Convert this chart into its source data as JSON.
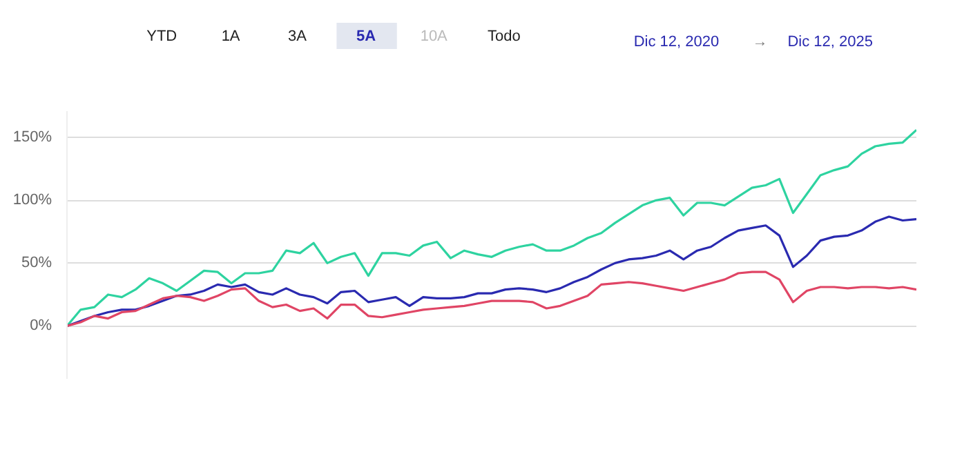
{
  "chart_data": {
    "type": "line",
    "annotations": [
      "YTD",
      "1A",
      "3A",
      "5A",
      "10A",
      "Todo",
      "Dic 12, 2020",
      "→",
      "Dic 12, 2025"
    ],
    "categories": [
      null,
      null,
      null,
      null,
      null,
      null,
      null,
      null,
      null,
      null,
      null,
      null,
      null,
      null,
      null,
      null,
      null,
      null,
      null,
      null,
      null,
      null,
      null,
      null,
      null,
      null,
      null,
      null,
      null,
      null,
      null,
      null,
      null,
      null,
      null,
      null,
      null,
      null,
      null,
      null,
      null,
      null,
      null,
      null,
      null,
      null,
      null,
      null,
      null,
      null,
      null,
      null,
      null,
      null,
      null,
      null,
      null,
      null,
      null,
      null,
      null,
      null,
      null
    ],
    "series": [
      {
        "color": "#2ed3a0",
        "values": [
          0,
          13,
          15,
          25,
          23,
          29,
          38,
          34,
          28,
          36,
          44,
          43,
          34,
          42,
          42,
          44,
          60,
          58,
          66,
          50,
          55,
          58,
          40,
          58,
          58,
          56,
          64,
          67,
          54,
          60,
          57,
          55,
          60,
          63,
          65,
          60,
          60,
          64,
          70,
          74,
          82,
          89,
          96,
          100,
          102,
          88,
          98,
          98,
          96,
          103,
          110,
          112,
          117,
          90,
          105,
          120,
          124,
          127,
          137,
          143,
          145,
          146,
          156
        ]
      },
      {
        "color": "#2a2ab0",
        "values": [
          0,
          4,
          8,
          11,
          13,
          13,
          16,
          20,
          24,
          25,
          28,
          33,
          31,
          33,
          27,
          25,
          30,
          25,
          23,
          18,
          27,
          28,
          19,
          21,
          23,
          16,
          23,
          22,
          22,
          23,
          26,
          26,
          29,
          30,
          29,
          27,
          30,
          35,
          39,
          45,
          50,
          53,
          54,
          56,
          60,
          53,
          60,
          63,
          70,
          76,
          78,
          80,
          72,
          47,
          56,
          68,
          71,
          72,
          76,
          83,
          87,
          84,
          85
        ]
      },
      {
        "color": "#e04565",
        "values": [
          0,
          3,
          8,
          6,
          11,
          12,
          17,
          22,
          24,
          23,
          20,
          24,
          29,
          30,
          20,
          15,
          17,
          12,
          14,
          6,
          17,
          17,
          8,
          7,
          9,
          11,
          13,
          14,
          15,
          16,
          18,
          20,
          20,
          20,
          19,
          14,
          16,
          20,
          24,
          33,
          34,
          35,
          34,
          32,
          30,
          28,
          31,
          34,
          37,
          42,
          43,
          43,
          37,
          19,
          28,
          31,
          31,
          30,
          31,
          31,
          30,
          31,
          29
        ]
      }
    ],
    "yticks": [
      {
        "value": 0,
        "label": "0%"
      },
      {
        "value": 50,
        "label": "50%"
      },
      {
        "value": 100,
        "label": "100%"
      },
      {
        "value": 150,
        "label": "150%"
      }
    ],
    "ylim": [
      -42,
      171
    ],
    "grid": "y",
    "tick_labels": "y",
    "marker": "none",
    "line_style": "solid"
  }
}
